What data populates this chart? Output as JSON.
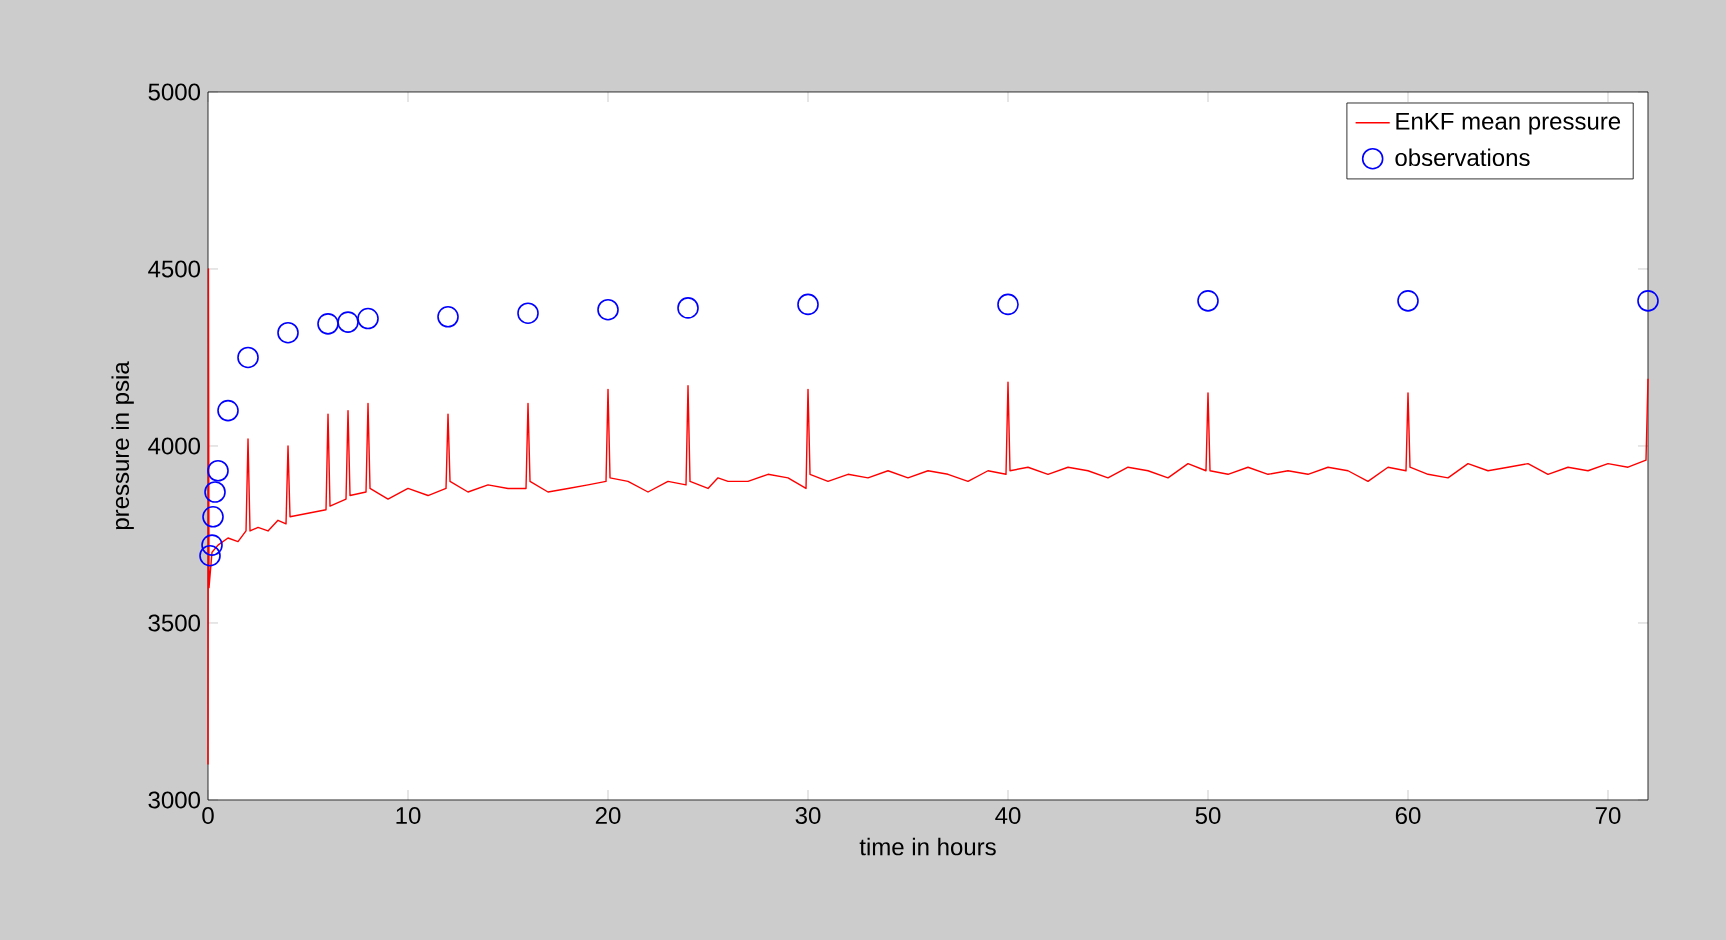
{
  "chart_data": {
    "type": "line",
    "xlabel": "time in hours",
    "ylabel": "pressure in psia",
    "xlim": [
      0,
      72
    ],
    "ylim": [
      3000,
      5000
    ],
    "xticks": [
      0,
      10,
      20,
      30,
      40,
      50,
      60,
      70
    ],
    "yticks": [
      3000,
      3500,
      4000,
      4500,
      5000
    ],
    "legend": "top right",
    "series": [
      {
        "name": "EnKF mean pressure",
        "color": "#ff0000",
        "marker": "none",
        "line_style": "solid",
        "x": [
          0,
          0.02,
          0.05,
          0.2,
          0.5,
          1,
          1.5,
          1.9,
          2,
          2.1,
          2.5,
          3,
          3.5,
          3.9,
          4,
          4.1,
          5,
          5.9,
          6,
          6.1,
          6.9,
          7,
          7.1,
          7.9,
          8,
          8.1,
          9,
          10,
          11,
          11.9,
          12,
          12.1,
          13,
          14,
          15,
          15.9,
          16,
          16.1,
          17,
          18,
          19,
          19.9,
          20,
          20.1,
          21,
          22,
          23,
          23.9,
          24,
          24.1,
          25,
          25.5,
          26,
          27,
          28,
          29,
          29.9,
          30,
          30.1,
          31,
          32,
          33,
          34,
          35,
          36,
          37,
          38,
          39,
          39.9,
          40,
          40.1,
          41,
          42,
          43,
          44,
          45,
          46,
          47,
          48,
          49,
          49.9,
          50,
          50.1,
          51,
          52,
          53,
          54,
          55,
          56,
          57,
          58,
          59,
          59.9,
          60,
          60.1,
          61,
          62,
          63,
          64,
          65,
          66,
          67,
          68,
          69,
          70,
          71,
          71.9,
          72
        ],
        "values": [
          3100,
          4500,
          3600,
          3700,
          3720,
          3740,
          3730,
          3760,
          4020,
          3760,
          3770,
          3760,
          3790,
          3780,
          4000,
          3800,
          3810,
          3820,
          4090,
          3830,
          3850,
          4100,
          3860,
          3870,
          4120,
          3880,
          3850,
          3880,
          3860,
          3880,
          4090,
          3900,
          3870,
          3890,
          3880,
          3880,
          4120,
          3900,
          3870,
          3880,
          3890,
          3900,
          4160,
          3910,
          3900,
          3870,
          3900,
          3890,
          4170,
          3900,
          3880,
          3910,
          3900,
          3900,
          3920,
          3910,
          3880,
          4160,
          3920,
          3900,
          3920,
          3910,
          3930,
          3910,
          3930,
          3920,
          3900,
          3930,
          3920,
          4180,
          3930,
          3940,
          3920,
          3940,
          3930,
          3910,
          3940,
          3930,
          3910,
          3950,
          3930,
          4150,
          3930,
          3920,
          3940,
          3920,
          3930,
          3920,
          3940,
          3930,
          3900,
          3940,
          3930,
          4150,
          3940,
          3920,
          3910,
          3950,
          3930,
          3940,
          3950,
          3920,
          3940,
          3930,
          3950,
          3940,
          3960,
          4190
        ]
      },
      {
        "name": "observations",
        "type": "scatter",
        "color": "#0000ff",
        "marker": "circle",
        "x": [
          0.1,
          0.2,
          0.25,
          0.35,
          0.5,
          1,
          2,
          4,
          6,
          7,
          8,
          12,
          16,
          20,
          24,
          30,
          40,
          50,
          60,
          72
        ],
        "values": [
          3690,
          3720,
          3800,
          3870,
          3930,
          4100,
          4250,
          4320,
          4345,
          4350,
          4360,
          4365,
          4375,
          4385,
          4390,
          4400,
          4400,
          4410,
          4410,
          4410
        ]
      }
    ]
  }
}
